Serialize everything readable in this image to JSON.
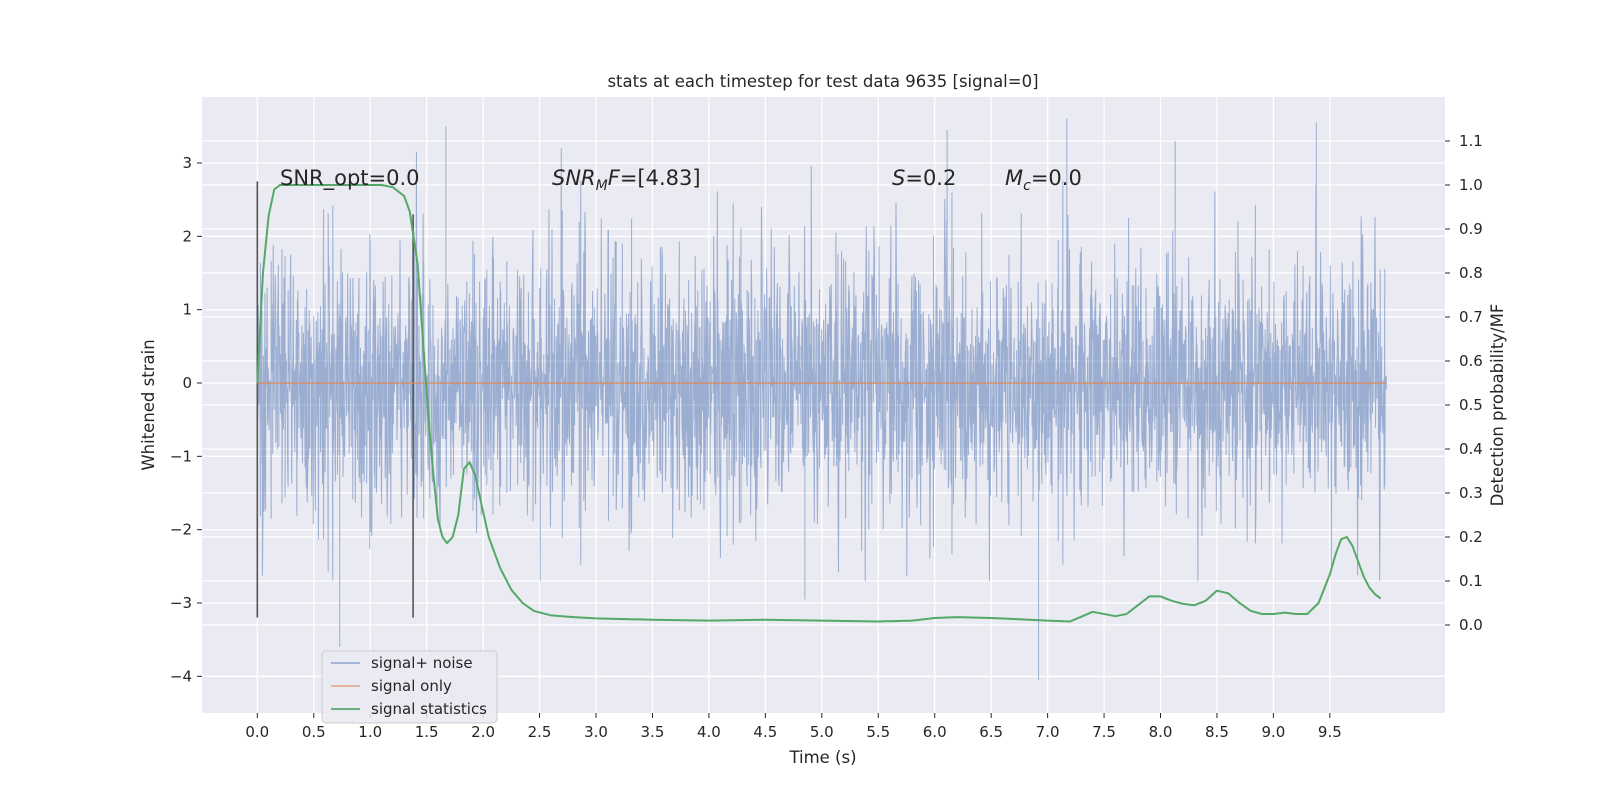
{
  "chart_data": {
    "type": "line",
    "title": "stats at each timestep for test data 9635 [signal=0]",
    "xlabel": "Time (s)",
    "ylabel": "Whitened strain",
    "y2label": "Detection probability/MF",
    "xlim": [
      -0.49,
      10.52
    ],
    "ylim": [
      -4.5,
      3.9
    ],
    "y2lim": [
      -0.2,
      1.2
    ],
    "xticks": [
      0.0,
      0.5,
      1.0,
      1.5,
      2.0,
      2.5,
      3.0,
      3.5,
      4.0,
      4.5,
      5.0,
      5.5,
      6.0,
      6.5,
      7.0,
      7.5,
      8.0,
      8.5,
      9.0,
      9.5
    ],
    "xtick_labels": [
      "0.0",
      "0.5",
      "1.0",
      "1.5",
      "2.0",
      "2.5",
      "3.0",
      "3.5",
      "4.0",
      "4.5",
      "5.0",
      "5.5",
      "6.0",
      "6.5",
      "7.0",
      "7.5",
      "8.0",
      "8.5",
      "9.0",
      "9.5"
    ],
    "yticks": [
      -4,
      -3,
      -2,
      -1,
      0,
      1,
      2,
      3
    ],
    "ytick_labels": [
      "−4",
      "−3",
      "−2",
      "−1",
      "0",
      "1",
      "2",
      "3"
    ],
    "y2ticks": [
      0.0,
      0.1,
      0.2,
      0.3,
      0.4,
      0.5,
      0.6,
      0.7,
      0.8,
      0.9,
      1.0,
      1.1
    ],
    "y2tick_labels": [
      "0.0",
      "0.1",
      "0.2",
      "0.3",
      "0.4",
      "0.5",
      "0.6",
      "0.7",
      "0.8",
      "0.9",
      "1.0",
      "1.1"
    ],
    "grid": true,
    "legend_position": "lower-left",
    "series": [
      {
        "name": "signal+ noise",
        "axis": "left",
        "color": "#4c72b0",
        "kind": "noise",
        "x_range": [
          0.0,
          10.0
        ],
        "envelope": [
          -2.7,
          3.2
        ],
        "extremes": [
          [
            1.67,
            3.5
          ],
          [
            7.17,
            3.6
          ],
          [
            9.38,
            3.55
          ],
          [
            8.13,
            3.3
          ],
          [
            6.11,
            3.45
          ],
          [
            0.73,
            -3.6
          ],
          [
            6.92,
            -4.05
          ],
          [
            4.85,
            -2.95
          ]
        ]
      },
      {
        "name": "signal only",
        "axis": "left",
        "color": "#dd8452",
        "x": [
          0.0,
          10.0
        ],
        "y": [
          0.0,
          0.0
        ]
      },
      {
        "name": "signal statistics",
        "axis": "right",
        "color": "#55a868",
        "x": [
          0.0,
          0.05,
          0.1,
          0.15,
          0.2,
          0.3,
          0.5,
          0.7,
          0.9,
          1.1,
          1.2,
          1.3,
          1.35,
          1.42,
          1.48,
          1.52,
          1.56,
          1.6,
          1.64,
          1.68,
          1.73,
          1.78,
          1.83,
          1.88,
          1.93,
          1.98,
          2.05,
          2.15,
          2.25,
          2.35,
          2.45,
          2.6,
          2.8,
          3.0,
          3.5,
          4.0,
          4.5,
          5.0,
          5.5,
          5.8,
          6.0,
          6.2,
          6.5,
          7.0,
          7.2,
          7.4,
          7.6,
          7.7,
          7.8,
          7.9,
          8.0,
          8.1,
          8.2,
          8.3,
          8.4,
          8.5,
          8.6,
          8.7,
          8.8,
          8.9,
          9.0,
          9.1,
          9.2,
          9.3,
          9.4,
          9.5,
          9.55,
          9.6,
          9.65,
          9.7,
          9.75,
          9.8,
          9.85,
          9.9,
          9.95
        ],
        "y": [
          0.55,
          0.8,
          0.93,
          0.99,
          1.0,
          1.0,
          1.0,
          1.0,
          1.0,
          1.0,
          0.995,
          0.975,
          0.94,
          0.82,
          0.6,
          0.46,
          0.34,
          0.24,
          0.2,
          0.186,
          0.2,
          0.25,
          0.355,
          0.37,
          0.34,
          0.28,
          0.2,
          0.13,
          0.08,
          0.05,
          0.032,
          0.022,
          0.018,
          0.015,
          0.012,
          0.01,
          0.012,
          0.01,
          0.008,
          0.01,
          0.016,
          0.018,
          0.016,
          0.01,
          0.008,
          0.03,
          0.02,
          0.025,
          0.045,
          0.065,
          0.065,
          0.055,
          0.048,
          0.045,
          0.055,
          0.078,
          0.072,
          0.05,
          0.032,
          0.025,
          0.025,
          0.028,
          0.025,
          0.025,
          0.05,
          0.115,
          0.16,
          0.195,
          0.2,
          0.18,
          0.145,
          0.11,
          0.085,
          0.07,
          0.06
        ]
      }
    ],
    "vertical_markers": [
      {
        "x": 0.0,
        "y_range": [
          -3.2,
          2.75
        ],
        "color": "#555555"
      },
      {
        "x": 1.38,
        "y_range": [
          -3.2,
          2.3
        ],
        "color": "#555555"
      }
    ],
    "annotations": [
      {
        "text": "SNR_opt=0.0",
        "x": 0.2,
        "y": 2.87
      },
      {
        "text": "SNR_MF=[4.83]",
        "x": 2.6,
        "y": 2.87
      },
      {
        "text": "S=0.2",
        "x": 5.6,
        "y": 2.87
      },
      {
        "text": "M_c=0.0",
        "x": 6.6,
        "y": 2.87
      }
    ]
  }
}
